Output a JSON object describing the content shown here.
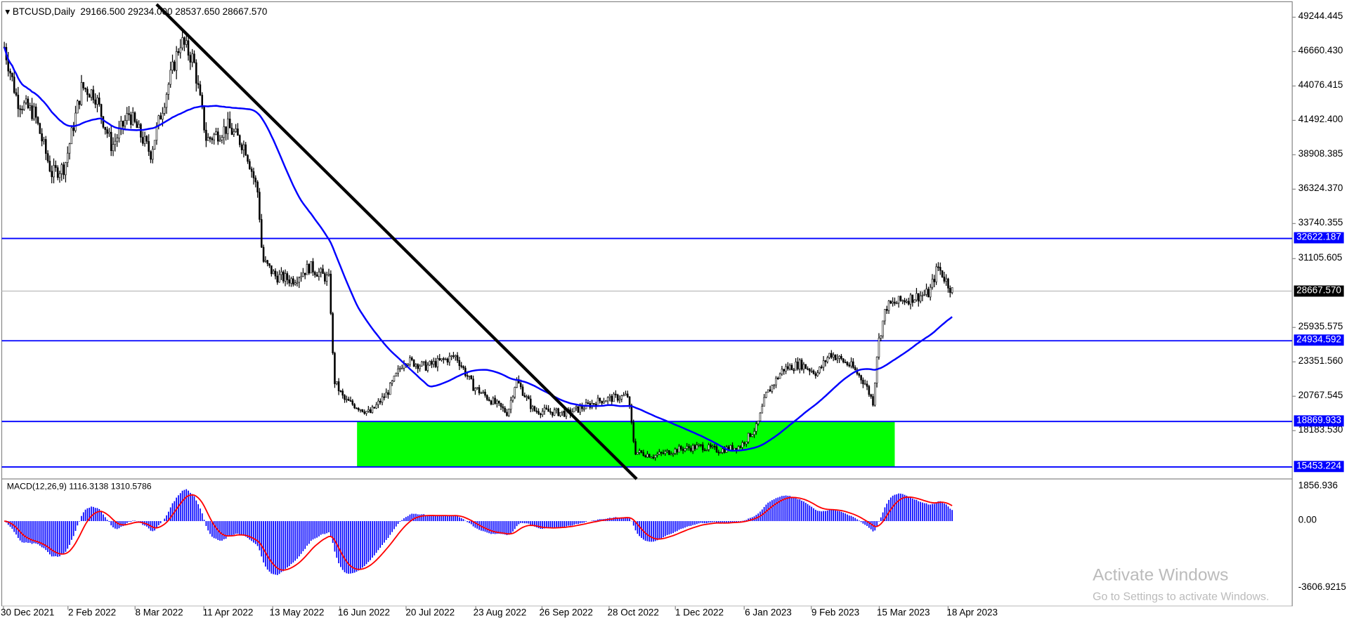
{
  "header": {
    "symbol": "BTCUSD,Daily",
    "open": "29166.500",
    "high": "29234.000",
    "low": "28537.650",
    "close": "28667.570"
  },
  "price_axis": [
    "49244.445",
    "46660.430",
    "44076.415",
    "41492.400",
    "38908.385",
    "36324.370",
    "33740.355",
    "31105.605",
    "25935.575",
    "23351.560",
    "20767.545",
    "18183.530"
  ],
  "levels": [
    {
      "value": "32622.187",
      "color": "#0000ff"
    },
    {
      "value": "24934.592",
      "color": "#0000ff"
    },
    {
      "value": "18869.933",
      "color": "#0000ff"
    },
    {
      "value": "15453.224",
      "color": "#0000ff"
    }
  ],
  "current_price": {
    "value": "28667.570",
    "color": "#000000"
  },
  "zone": {
    "color": "#00ff00",
    "from": "15453.224",
    "to": "18869.933"
  },
  "macd": {
    "label": "MACD(12,26,9) 1116.3138 1310.5786",
    "axis": [
      "1856.936",
      "0.00",
      "-3606.9215"
    ],
    "histogram_color": "#0000ff",
    "signal_color": "#ff0000"
  },
  "date_axis": [
    "30 Dec 2021",
    "2 Feb 2022",
    "8 Mar 2022",
    "11 Apr 2022",
    "13 May 2022",
    "16 Jun 2022",
    "20 Jul 2022",
    "23 Aug 2022",
    "26 Sep 2022",
    "28 Oct 2022",
    "1 Dec 2022",
    "6 Jan 2023",
    "9 Feb 2023",
    "15 Mar 2023",
    "18 Apr 2023"
  ],
  "watermark": {
    "title": "Activate Windows",
    "subtitle": "Go to Settings to activate Windows."
  },
  "colors": {
    "ma": "#0000ff",
    "trendline": "#000000",
    "candles": "#000000"
  }
}
